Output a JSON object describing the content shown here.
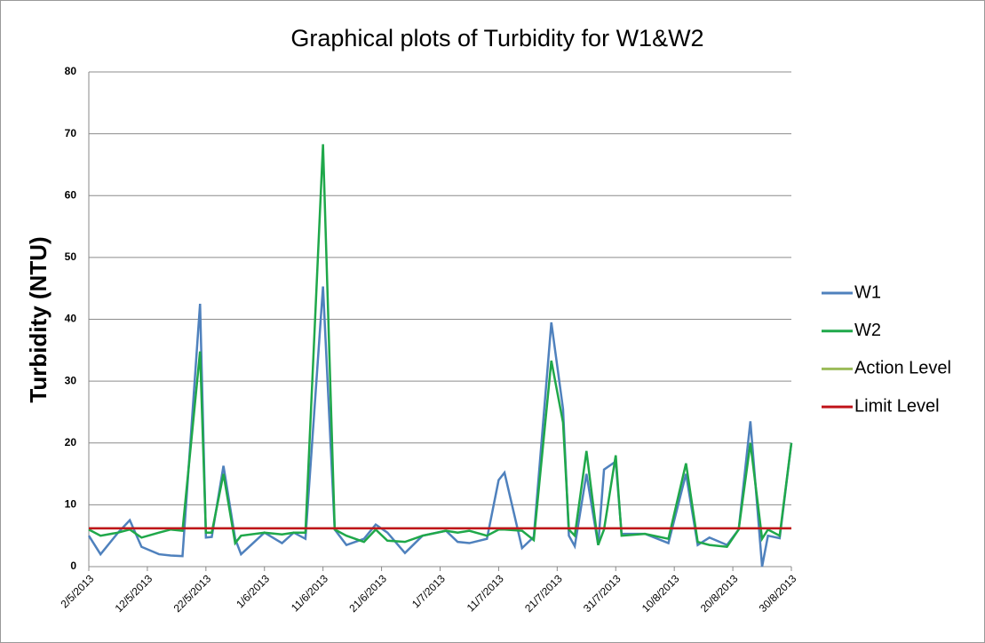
{
  "chart_data": {
    "type": "line",
    "title": "Graphical plots of Turbidity for W1&W2",
    "y_label": "Turbidity (NTU)",
    "x": [
      "2/5/2013",
      "4/5/2013",
      "7/5/2013",
      "9/5/2013",
      "11/5/2013",
      "14/5/2013",
      "16/5/2013",
      "18/5/2013",
      "21/5/2013",
      "22/5/2013",
      "23/5/2013",
      "25/5/2013",
      "27/5/2013",
      "28/5/2013",
      "1/6/2013",
      "4/6/2013",
      "6/6/2013",
      "8/6/2013",
      "11/6/2013",
      "13/6/2013",
      "15/6/2013",
      "18/6/2013",
      "20/6/2013",
      "22/6/2013",
      "25/6/2013",
      "28/6/2013",
      "2/7/2013",
      "4/7/2013",
      "6/7/2013",
      "9/7/2013",
      "11/7/2013",
      "12/7/2013",
      "15/7/2013",
      "17/7/2013",
      "20/7/2013",
      "22/7/2013",
      "23/7/2013",
      "24/7/2013",
      "26/7/2013",
      "28/7/2013",
      "29/7/2013",
      "31/7/2013",
      "1/8/2013",
      "5/8/2013",
      "9/8/2013",
      "12/8/2013",
      "14/8/2013",
      "16/8/2013",
      "19/8/2013",
      "21/8/2013",
      "23/8/2013",
      "25/8/2013",
      "26/8/2013",
      "28/8/2013",
      "30/8/2013"
    ],
    "series": [
      {
        "name": "W1",
        "color": "#4f81bd",
        "values": [
          5,
          2,
          5.5,
          7.5,
          3.2,
          2,
          1.8,
          1.7,
          42.5,
          4.7,
          4.8,
          16.3,
          4.5,
          2,
          5.5,
          3.8,
          5.5,
          4.5,
          45.3,
          6,
          3.5,
          4.5,
          6.8,
          5.5,
          2.2,
          5,
          5.8,
          4,
          3.8,
          4.5,
          14,
          15.2,
          3,
          4.8,
          39.5,
          25.5,
          5,
          3.3,
          15,
          3.5,
          15.7,
          17,
          5.3,
          5.3,
          3.8,
          15,
          3.5,
          4.7,
          3.5,
          6,
          23.5,
          0,
          5,
          4.6,
          20
        ]
      },
      {
        "name": "W2",
        "color": "#1fa84a",
        "values": [
          6,
          5,
          5.5,
          6,
          4.7,
          5.5,
          6,
          5.8,
          34.8,
          5.5,
          5.5,
          15,
          3.8,
          5,
          5.5,
          5.2,
          5.5,
          5.5,
          68.3,
          6,
          5,
          4,
          6,
          4.2,
          4,
          5,
          5.8,
          5.5,
          5.8,
          5,
          6,
          6,
          5.8,
          4.3,
          33.3,
          23.3,
          6,
          5,
          18.7,
          3.5,
          6,
          18,
          5,
          5.3,
          4.5,
          16.7,
          4,
          3.5,
          3.2,
          6,
          20,
          4.5,
          6,
          5,
          20
        ]
      },
      {
        "name": "Action Level",
        "color": "#9bbb59",
        "x": [
          "2/5/2013",
          "30/8/2013"
        ],
        "values": [
          6.2,
          6.2
        ]
      },
      {
        "name": "Limit Level",
        "color": "#c0141a",
        "x": [
          "2/5/2013",
          "30/8/2013"
        ],
        "values": [
          6.2,
          6.2
        ]
      }
    ],
    "xlim": [
      "2/5/2013",
      "30/8/2013"
    ],
    "xticks": [
      "2/5/2013",
      "12/5/2013",
      "22/5/2013",
      "1/6/2013",
      "11/6/2013",
      "21/6/2013",
      "1/7/2013",
      "11/7/2013",
      "21/7/2013",
      "31/7/2013",
      "10/8/2013",
      "20/8/2013",
      "30/8/2013"
    ],
    "ylim": [
      0,
      80
    ],
    "yticks": [
      0,
      10,
      20,
      30,
      40,
      50,
      60,
      70,
      80
    ],
    "grid": true,
    "legend": "right"
  }
}
